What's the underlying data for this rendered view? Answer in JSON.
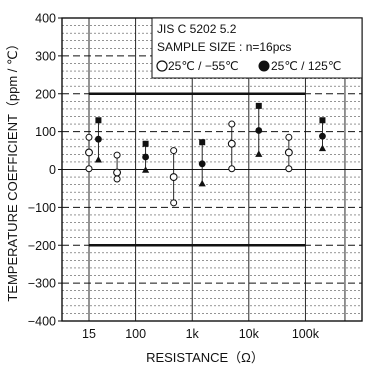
{
  "chart_data": {
    "type": "scatter",
    "xlabel": "RESISTANCE（Ω）",
    "ylabel": "TEMPERATURE COEFFICIENT（ppm / ℃）",
    "xscale": "log",
    "xlim": [
      5,
      1000000
    ],
    "ylim": [
      -400,
      400
    ],
    "x_ticks": [
      {
        "value": 15,
        "label": "15"
      },
      {
        "value": 100,
        "label": "100"
      },
      {
        "value": 1000,
        "label": "1k"
      },
      {
        "value": 10000,
        "label": "10k"
      },
      {
        "value": 100000,
        "label": "100k"
      }
    ],
    "y_ticks": [
      {
        "value": 400,
        "label": "400"
      },
      {
        "value": 300,
        "label": "300"
      },
      {
        "value": 200,
        "label": "200"
      },
      {
        "value": 100,
        "label": "100"
      },
      {
        "value": 0,
        "label": "0"
      },
      {
        "value": -100,
        "label": "−100"
      },
      {
        "value": -200,
        "label": "−200"
      },
      {
        "value": -300,
        "label": "−300"
      },
      {
        "value": -400,
        "label": "−400"
      }
    ],
    "grid": true,
    "limit_lines": [
      200,
      -200
    ],
    "limit_range": [
      15,
      100000
    ],
    "legend": {
      "lines": [
        "JIS C 5202 5.2",
        "SAMPLE SIZE : n=16pcs"
      ],
      "open_label": "25℃ / −55℃",
      "filled_label": "25℃ / 125℃",
      "placement": "top-right"
    },
    "series": [
      {
        "condition": "25℃ / −55℃",
        "x": [
          15,
          47,
          470,
          5000,
          51000
        ],
        "max": [
          85,
          38,
          50,
          120,
          85
        ],
        "mean": [
          45,
          -8,
          -20,
          68,
          45
        ],
        "min": [
          2,
          -25,
          -88,
          2,
          2
        ]
      },
      {
        "condition": "25℃ / 125℃",
        "x": [
          22,
          150,
          1500,
          15000,
          200000
        ],
        "max": [
          130,
          68,
          72,
          168,
          130
        ],
        "mean": [
          80,
          33,
          15,
          103,
          88
        ],
        "min": [
          25,
          -2,
          -38,
          40,
          55
        ]
      }
    ]
  }
}
